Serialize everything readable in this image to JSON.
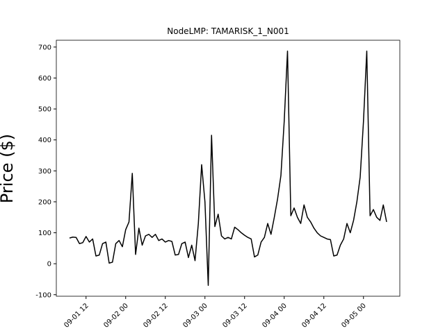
{
  "chart_data": {
    "type": "line",
    "title": "NodeLMP: TAMARISK_1_N001",
    "y_label": "Price ($)",
    "x": [
      "09-01 07",
      "09-01 08",
      "09-01 09",
      "09-01 10",
      "09-01 11",
      "09-01 12",
      "09-01 13",
      "09-01 14",
      "09-01 15",
      "09-01 16",
      "09-01 17",
      "09-01 18",
      "09-01 19",
      "09-01 20",
      "09-01 21",
      "09-01 22",
      "09-01 23",
      "09-02 00",
      "09-02 01",
      "09-02 02",
      "09-02 03",
      "09-02 04",
      "09-02 05",
      "09-02 06",
      "09-02 07",
      "09-02 08",
      "09-02 09",
      "09-02 10",
      "09-02 11",
      "09-02 12",
      "09-02 13",
      "09-02 14",
      "09-02 15",
      "09-02 16",
      "09-02 17",
      "09-02 18",
      "09-02 19",
      "09-02 20",
      "09-02 21",
      "09-02 22",
      "09-02 23",
      "09-03 00",
      "09-03 01",
      "09-03 02",
      "09-03 03",
      "09-03 04",
      "09-03 05",
      "09-03 06",
      "09-03 07",
      "09-03 08",
      "09-03 09",
      "09-03 10",
      "09-03 11",
      "09-03 12",
      "09-03 13",
      "09-03 14",
      "09-03 15",
      "09-03 16",
      "09-03 17",
      "09-03 18",
      "09-03 19",
      "09-03 20",
      "09-03 21",
      "09-03 22",
      "09-03 23",
      "09-04 00",
      "09-04 01",
      "09-04 02",
      "09-04 03",
      "09-04 04",
      "09-04 05",
      "09-04 06",
      "09-04 07",
      "09-04 08",
      "09-04 09",
      "09-04 10",
      "09-04 11",
      "09-04 12",
      "09-04 13",
      "09-04 14",
      "09-04 15",
      "09-04 16",
      "09-04 17",
      "09-04 18",
      "09-04 19",
      "09-04 20",
      "09-04 21",
      "09-04 22",
      "09-04 23",
      "09-05 00",
      "09-05 01",
      "09-05 02",
      "09-05 03",
      "09-05 04",
      "09-05 05",
      "09-05 06",
      "09-05 07"
    ],
    "series": [
      {
        "color": "#000000",
        "values": [
          83,
          86,
          85,
          65,
          68,
          88,
          70,
          80,
          25,
          28,
          65,
          70,
          2,
          5,
          65,
          75,
          55,
          110,
          135,
          292,
          30,
          115,
          60,
          90,
          95,
          85,
          95,
          75,
          80,
          70,
          75,
          72,
          28,
          30,
          65,
          70,
          20,
          60,
          10,
          130,
          320,
          200,
          -70,
          415,
          120,
          160,
          90,
          80,
          85,
          80,
          118,
          110,
          100,
          92,
          85,
          80,
          22,
          28,
          70,
          85,
          130,
          95,
          150,
          210,
          285,
          460,
          687,
          155,
          180,
          150,
          130,
          190,
          150,
          135,
          115,
          100,
          90,
          85,
          80,
          78,
          25,
          28,
          60,
          80,
          130,
          100,
          140,
          200,
          280,
          460,
          687,
          155,
          175,
          150,
          140,
          190,
          135
        ]
      }
    ],
    "xlim": [
      "09-01 03",
      "09-05 11"
    ],
    "xticks": [
      "09-01 12",
      "09-02 00",
      "09-02 12",
      "09-03 00",
      "09-03 12",
      "09-04 00",
      "09-04 12",
      "09-05 00"
    ],
    "ylim": [
      -105,
      722
    ],
    "yticks": [
      -100,
      0,
      100,
      200,
      300,
      400,
      500,
      600,
      700
    ]
  }
}
